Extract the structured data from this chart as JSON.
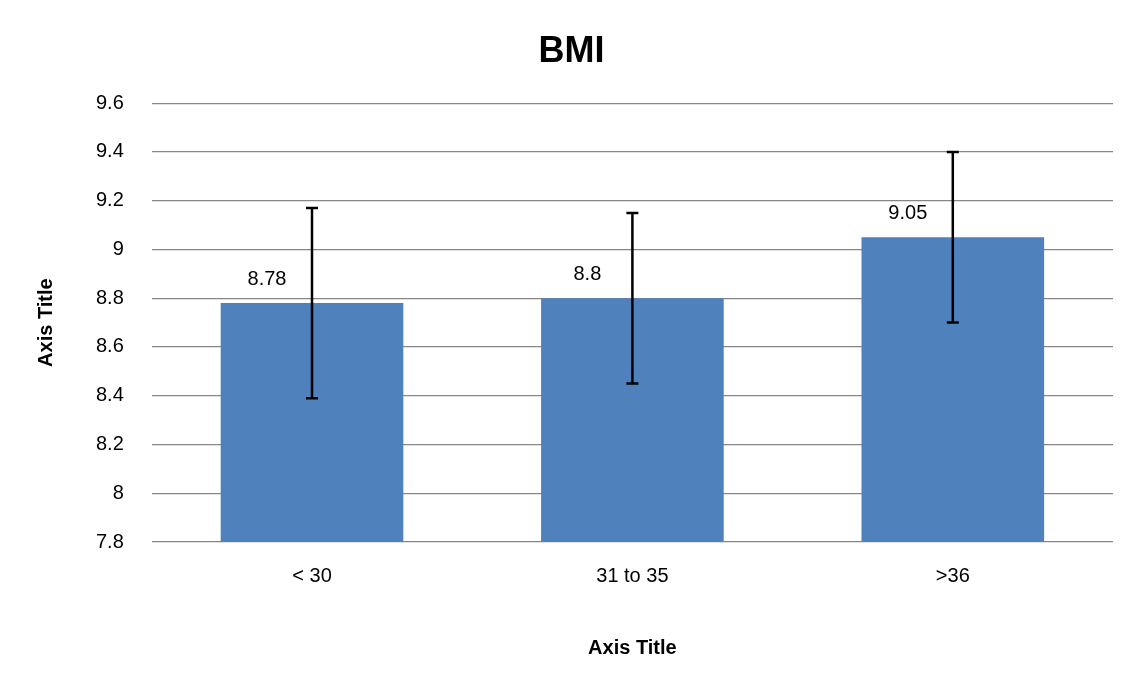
{
  "chart_data": {
    "type": "bar",
    "title": "BMI",
    "xlabel": "Axis Title",
    "ylabel": "Axis Title",
    "categories": [
      "< 30",
      "31 to 35",
      ">36"
    ],
    "values": [
      8.78,
      8.8,
      9.05
    ],
    "errors": [
      0.39,
      0.35,
      0.35
    ],
    "color": "#4f81bd",
    "ylim": [
      7.8,
      9.6
    ],
    "yticks": [
      7.8,
      8,
      8.2,
      8.4,
      8.6,
      8.8,
      9,
      9.2,
      9.4,
      9.6
    ],
    "grid": "y",
    "data_labels": true
  }
}
